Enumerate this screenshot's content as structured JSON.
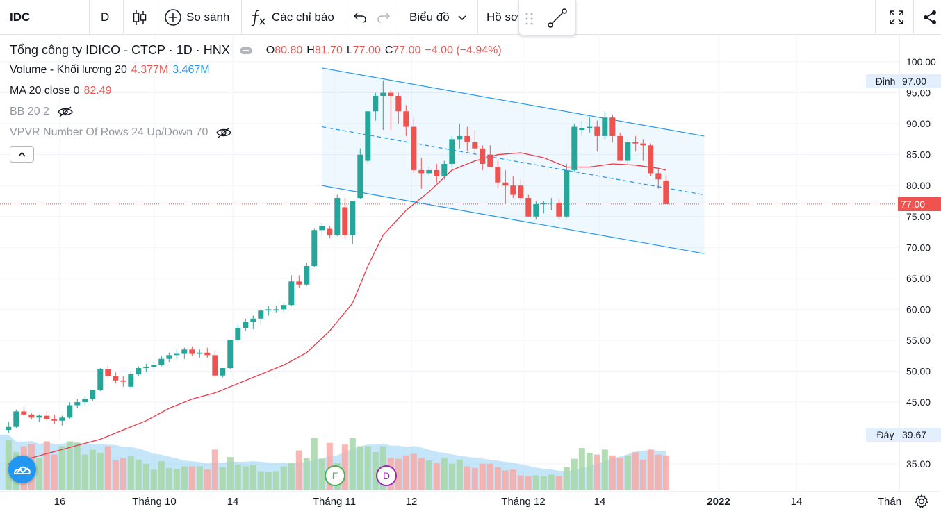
{
  "toolbar": {
    "symbol": "IDC",
    "interval": "D",
    "compare_label": "So sánh",
    "indicators_label": "Các chỉ báo",
    "chart_label": "Biểu đồ",
    "profile_label": "Hồ sơ"
  },
  "legend": {
    "title": "Tổng công ty IDICO - CTCP · 1D · HNX",
    "ohlc": {
      "o_label": "O",
      "o": "80.80",
      "h_label": "H",
      "h": "81.70",
      "l_label": "L",
      "l": "77.00",
      "c_label": "C",
      "c": "77.00",
      "change": "−4.00 (−4.94%)"
    },
    "volume": {
      "label": "Volume - Khối lượng 20",
      "v1": "4.377M",
      "v2": "3.467M"
    },
    "ma": {
      "label": "MA 20 close 0",
      "value": "82.49"
    },
    "bb": {
      "label": "BB 20 2"
    },
    "vpvr": {
      "label": "VPVR Number Of Rows 24 Up/Down 70"
    }
  },
  "price_axis": {
    "ticks": [
      "100.00",
      "95.00",
      "90.00",
      "85.00",
      "80.00",
      "75.00",
      "70.00",
      "65.00",
      "60.00",
      "55.00",
      "50.00",
      "45.00",
      "35.00"
    ],
    "high_label": {
      "name": "Đỉnh",
      "value": "97.00"
    },
    "low_label": {
      "name": "Đáy",
      "value": "39.67"
    },
    "last_price": "77.00"
  },
  "time_axis": {
    "labels": [
      "16",
      "Tháng 10",
      "14",
      "Tháng 11",
      "12",
      "Tháng 12",
      "14",
      "2022",
      "14",
      "Thán"
    ]
  },
  "markers": {
    "f": "F",
    "d": "D"
  },
  "colors": {
    "up": "#26a69a",
    "down": "#ef5350",
    "ma": "#f23645",
    "channel": "#2196f3",
    "volume_up": "#a5d6a7",
    "volume_down": "#f7a9a7"
  },
  "chart_data": {
    "type": "candlestick",
    "symbol": "IDC",
    "candles": [
      [
        40.5,
        41.8,
        40.0,
        41.0
      ],
      [
        41.0,
        43.8,
        40.8,
        43.5
      ],
      [
        43.5,
        44.2,
        42.8,
        43.0
      ],
      [
        43.0,
        43.2,
        42.2,
        42.5
      ],
      [
        42.5,
        43.0,
        41.8,
        42.8
      ],
      [
        42.8,
        43.5,
        42.0,
        42.3
      ],
      [
        42.3,
        43.0,
        41.5,
        42.0
      ],
      [
        42.0,
        42.8,
        41.2,
        42.5
      ],
      [
        42.5,
        45.0,
        42.3,
        44.5
      ],
      [
        44.5,
        45.5,
        44.0,
        45.0
      ],
      [
        45.0,
        46.0,
        44.5,
        45.5
      ],
      [
        45.5,
        47.0,
        45.2,
        47.0
      ],
      [
        47.0,
        50.5,
        46.8,
        50.3
      ],
      [
        50.3,
        51.0,
        48.8,
        49.2
      ],
      [
        49.2,
        49.8,
        48.0,
        48.5
      ],
      [
        48.5,
        49.2,
        47.5,
        48.3
      ],
      [
        47.5,
        50.0,
        47.2,
        49.5
      ],
      [
        49.5,
        50.8,
        49.2,
        50.5
      ],
      [
        50.5,
        51.2,
        49.8,
        50.7
      ],
      [
        50.7,
        51.5,
        50.2,
        51.0
      ],
      [
        51.0,
        52.5,
        50.8,
        52.0
      ],
      [
        52.0,
        53.0,
        51.5,
        52.6
      ],
      [
        52.6,
        53.5,
        52.0,
        52.8
      ],
      [
        52.8,
        53.8,
        52.0,
        53.5
      ],
      [
        53.5,
        54.0,
        52.5,
        52.8
      ],
      [
        52.8,
        53.5,
        52.2,
        53.0
      ],
      [
        53.0,
        53.8,
        52.2,
        52.6
      ],
      [
        52.6,
        53.2,
        49.0,
        49.3
      ],
      [
        49.3,
        50.5,
        49.0,
        50.5
      ],
      [
        50.5,
        55.0,
        50.3,
        55.0
      ],
      [
        55.0,
        57.5,
        54.8,
        57.0
      ],
      [
        57.0,
        58.5,
        56.5,
        58.0
      ],
      [
        58.0,
        59.0,
        56.8,
        58.5
      ],
      [
        58.5,
        60.0,
        57.5,
        59.8
      ],
      [
        59.8,
        60.5,
        59.0,
        60.0
      ],
      [
        59.8,
        60.5,
        59.5,
        60.0
      ],
      [
        60.0,
        61.0,
        59.5,
        60.7
      ],
      [
        60.7,
        65.5,
        60.5,
        64.5
      ],
      [
        64.5,
        65.5,
        63.5,
        64.0
      ],
      [
        64.0,
        67.5,
        63.8,
        67.0
      ],
      [
        67.0,
        73.0,
        66.8,
        72.8
      ],
      [
        72.8,
        74.0,
        71.8,
        73.5
      ],
      [
        73.0,
        73.5,
        71.5,
        72.0
      ],
      [
        72.0,
        78.5,
        71.8,
        78.0
      ],
      [
        76.5,
        78.0,
        71.5,
        72.0
      ],
      [
        72.0,
        77.5,
        70.5,
        77.5
      ],
      [
        78.0,
        86.0,
        77.8,
        85.0
      ],
      [
        84.0,
        92.0,
        83.5,
        92.0
      ],
      [
        92.0,
        95.0,
        90.5,
        94.5
      ],
      [
        94.5,
        97.0,
        89.0,
        95.0
      ],
      [
        95.0,
        95.5,
        89.0,
        94.5
      ],
      [
        94.5,
        95.0,
        90.0,
        92.0
      ],
      [
        92.0,
        93.0,
        88.0,
        89.5
      ],
      [
        89.5,
        91.0,
        82.0,
        82.5
      ],
      [
        82.5,
        84.5,
        79.5,
        82.0
      ],
      [
        82.0,
        83.0,
        81.5,
        82.5
      ],
      [
        82.5,
        83.5,
        80.5,
        81.5
      ],
      [
        81.5,
        84.0,
        81.0,
        83.5
      ],
      [
        83.5,
        88.0,
        83.0,
        87.5
      ],
      [
        87.5,
        90.0,
        86.0,
        88.0
      ],
      [
        88.0,
        89.5,
        85.5,
        87.0
      ],
      [
        87.0,
        89.0,
        85.0,
        86.0
      ],
      [
        86.0,
        86.5,
        82.5,
        83.5
      ],
      [
        85.0,
        86.5,
        83.0,
        83.0
      ],
      [
        83.0,
        84.0,
        79.5,
        80.5
      ],
      [
        80.5,
        82.5,
        77.0,
        80.0
      ],
      [
        80.0,
        81.5,
        78.0,
        78.5
      ],
      [
        80.0,
        81.0,
        77.5,
        78.0
      ],
      [
        78.0,
        78.5,
        75.0,
        75.0
      ],
      [
        75.0,
        77.5,
        74.5,
        77.0
      ],
      [
        77.0,
        77.5,
        75.5,
        77.2
      ],
      [
        77.2,
        78.0,
        76.0,
        77.2
      ],
      [
        77.2,
        78.0,
        74.5,
        75.0
      ],
      [
        75.0,
        83.5,
        74.8,
        82.5
      ],
      [
        82.5,
        90.0,
        82.3,
        89.5
      ],
      [
        89.0,
        90.5,
        88.0,
        89.3
      ],
      [
        89.3,
        91.0,
        88.5,
        89.5
      ],
      [
        89.5,
        90.5,
        85.5,
        88.0
      ],
      [
        88.0,
        92.0,
        87.5,
        91.0
      ],
      [
        91.0,
        91.5,
        87.0,
        88.0
      ],
      [
        88.0,
        88.5,
        84.5,
        84.0
      ],
      [
        84.0,
        87.5,
        83.5,
        87.0
      ],
      [
        87.0,
        88.0,
        85.5,
        86.8
      ],
      [
        86.8,
        87.5,
        84.0,
        86.5
      ],
      [
        86.5,
        86.8,
        81.5,
        82.0
      ],
      [
        82.0,
        82.8,
        79.5,
        81.0
      ],
      [
        80.8,
        81.7,
        77.0,
        77.0
      ]
    ],
    "volume_ratio": [
      0.6,
      0.45,
      0.52,
      0.55,
      0.38,
      0.58,
      0.42,
      0.52,
      0.58,
      0.56,
      0.42,
      0.48,
      0.44,
      0.52,
      0.35,
      0.38,
      0.4,
      0.36,
      0.31,
      0.24,
      0.34,
      0.26,
      0.25,
      0.28,
      0.28,
      0.28,
      0.24,
      0.48,
      0.27,
      0.39,
      0.3,
      0.28,
      0.3,
      0.22,
      0.21,
      0.22,
      0.28,
      0.32,
      0.47,
      0.38,
      0.62,
      0.37,
      0.56,
      0.32,
      0.54,
      0.62,
      0.52,
      0.52,
      0.45,
      0.52,
      0.38,
      0.37,
      0.41,
      0.43,
      0.38,
      0.35,
      0.32,
      0.38,
      0.31,
      0.36,
      0.28,
      0.26,
      0.31,
      0.31,
      0.27,
      0.23,
      0.24,
      0.17,
      0.16,
      0.17,
      0.16,
      0.18,
      0.16,
      0.27,
      0.37,
      0.5,
      0.44,
      0.42,
      0.48,
      0.41,
      0.38,
      0.41,
      0.45,
      0.36,
      0.48,
      0.42,
      0.41
    ],
    "ma20": [
      [
        0,
        35.0
      ],
      [
        3,
        36.0
      ],
      [
        6,
        37.0
      ],
      [
        9,
        38.0
      ],
      [
        12,
        39.0
      ],
      [
        15,
        40.5
      ],
      [
        18,
        42.0
      ],
      [
        21,
        44.0
      ],
      [
        24,
        45.5
      ],
      [
        27,
        46.5
      ],
      [
        30,
        48.0
      ],
      [
        33,
        49.5
      ],
      [
        36,
        51.0
      ],
      [
        39,
        53.0
      ],
      [
        42,
        56.5
      ],
      [
        45,
        61.0
      ],
      [
        47,
        67.0
      ],
      [
        49,
        72.0
      ],
      [
        52,
        76.0
      ],
      [
        55,
        79.0
      ],
      [
        58,
        82.5
      ],
      [
        61,
        84.0
      ],
      [
        64,
        85.0
      ],
      [
        67,
        85.3
      ],
      [
        70,
        84.5
      ],
      [
        73,
        83.0
      ],
      [
        76,
        83.0
      ],
      [
        79,
        83.5
      ],
      [
        82,
        83.3
      ],
      [
        85,
        82.8
      ],
      [
        86,
        82.49
      ]
    ],
    "channel": {
      "upper": [
        [
          41,
          99.0
        ],
        [
          91,
          88.0
        ]
      ],
      "mid": [
        [
          41,
          89.5
        ],
        [
          91,
          78.5
        ]
      ],
      "lower": [
        [
          41,
          80.0
        ],
        [
          91,
          69.0
        ]
      ]
    },
    "ylim": [
      31.0,
      103.0
    ]
  }
}
